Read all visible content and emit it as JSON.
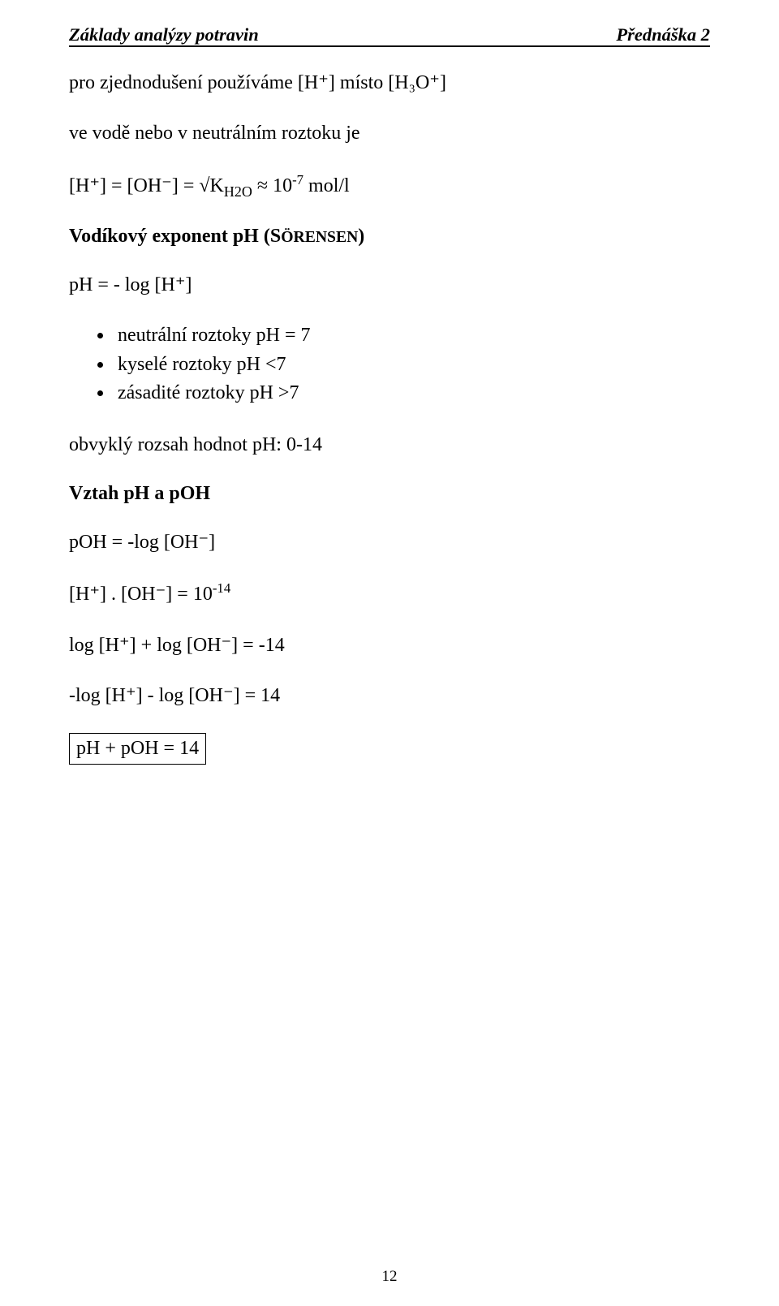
{
  "header": {
    "left": "Základy analýzy potravin",
    "right": "Přednáška 2"
  },
  "para_intro": "pro zjednodušení používáme [H⁺] místo [H₃O⁺]",
  "para_water": "ve vodě nebo v neutrálním roztoku je",
  "para_eq1_prefix": "[H⁺] = [OH⁻] = ",
  "para_eq1_sqrt": "√",
  "para_eq1_kbase": "K",
  "para_eq1_ksub": "H2O",
  "para_eq1_approx": " ≈ 10",
  "para_eq1_exp": "-7",
  "para_eq1_tail": " mol/l",
  "heading_vodikovy_pre": "Vodíkový exponent pH (S",
  "heading_vodikovy_sc": "ÖRENSEN",
  "heading_vodikovy_post": ")",
  "para_phlog": "pH = - log [H⁺]",
  "bullets": {
    "b1": "neutrální roztoky pH = 7",
    "b2": "kyselé roztoky pH <7",
    "b3": "zásadité roztoky pH >7"
  },
  "para_range": "obvyklý rozsah hodnot pH: 0-14",
  "heading_vztah": "Vztah pH a pOH",
  "para_poh": "pOH = -log [OH⁻]",
  "para_prod_prefix": "[H⁺] . [OH⁻] = 10",
  "para_prod_exp": "-14",
  "para_logsum": "log [H⁺]  + log [OH⁻] = -14",
  "para_neglogsum": "-log [H⁺]  - log [OH⁻] = 14",
  "boxed_eq": "pH + pOH = 14",
  "page_number": "12"
}
